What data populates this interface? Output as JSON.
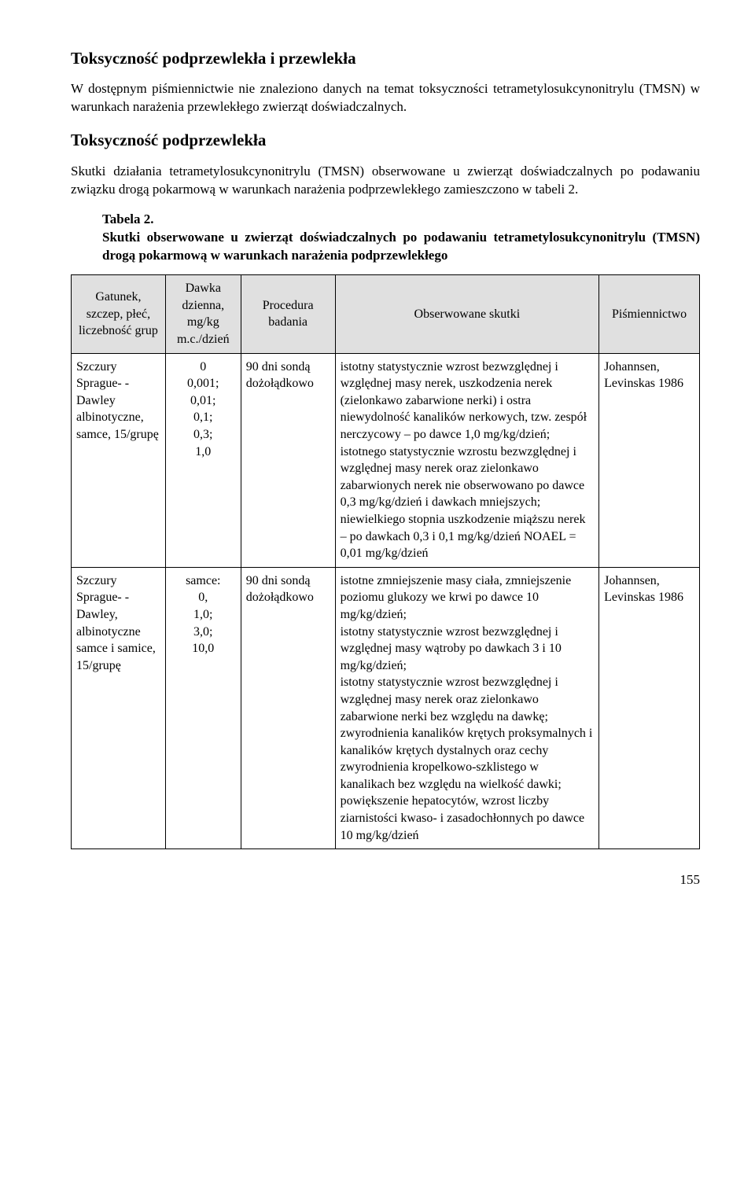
{
  "section1": {
    "heading": "Toksyczność podprzewlekła i przewlekła",
    "para": "W dostępnym piśmiennictwie nie znaleziono danych na temat toksyczności tetrametylosukcynonitrylu (TMSN) w warunkach narażenia przewlekłego zwierząt doświadczalnych."
  },
  "section2": {
    "heading": "Toksyczność podprzewlekła",
    "para": "Skutki działania tetrametylosukcynonitrylu (TMSN) obserwowane u zwierząt doświadczalnych po podawaniu związku drogą pokarmową w warunkach narażenia podprzewlekłego zamieszczono w tabeli 2."
  },
  "table": {
    "label": "Tabela 2.",
    "caption": "Skutki obserwowane u zwierząt doświadczalnych po podawaniu tetrametylosukcynonitrylu (TMSN) drogą pokarmową w warunkach narażenia podprzewlekłego",
    "headers": {
      "c1": "Gatunek, szczep, płeć, liczebność grup",
      "c2": "Dawka dzienna, mg/kg m.c./dzień",
      "c3": "Procedura badania",
      "c4": "Obserwowane skutki",
      "c5": "Piśmiennictwo"
    },
    "rows": [
      {
        "c1": "Szczury Sprague- -Dawley albinotyczne, samce, 15/grupę",
        "c2": "0\n 0,001;\n 0,01;\n 0,1;\n 0,3;\n 1,0",
        "c3": "90 dni sondą dożołądkowo",
        "c4": "istotny statystycznie wzrost bezwzględnej i względnej masy nerek, uszkodzenia nerek (zielonkawo zabarwione nerki) i ostra niewydolność kanalików nerkowych, tzw. zespół nerczycowy – po dawce 1,0 mg/kg/dzień; istotnego statystycznie wzrostu bezwzględnej i względnej masy nerek oraz zielonkawo zabarwionych nerek nie obserwowano po dawce 0,3 mg/kg/dzień i dawkach mniejszych; niewielkiego stopnia uszkodzenie miąższu nerek – po dawkach 0,3 i 0,1 mg/kg/dzień NOAEL = 0,01 mg/kg/dzień",
        "c5": "Johannsen, Levinskas 1986"
      },
      {
        "c1": "Szczury Sprague- -Dawley, albinotyczne samce i samice, 15/grupę",
        "c2": "samce:\n 0,\n 1,0;\n 3,0;\n 10,0",
        "c3": "90 dni sondą dożołądkowo",
        "c4": "istotne zmniejszenie masy ciała, zmniejszenie poziomu glukozy we krwi po dawce 10 mg/kg/dzień;\nistotny statystycznie wzrost bezwzględnej i względnej masy wątroby po dawkach 3 i 10 mg/kg/dzień;\nistotny statystycznie wzrost bezwzględnej i względnej masy nerek oraz zielonkawo zabarwione nerki bez względu na dawkę; zwyrodnienia kanalików krętych proksymalnych i kanalików krętych dystalnych oraz cechy zwyrodnienia kropelkowo-szklistego w kanalikach bez względu na wielkość dawki; powiększenie hepatocytów, wzrost liczby ziarnistości kwaso- i zasadochłonnych po dawce 10 mg/kg/dzień",
        "c5": "Johannsen, Levinskas 1986"
      }
    ]
  },
  "pagenum": "155"
}
